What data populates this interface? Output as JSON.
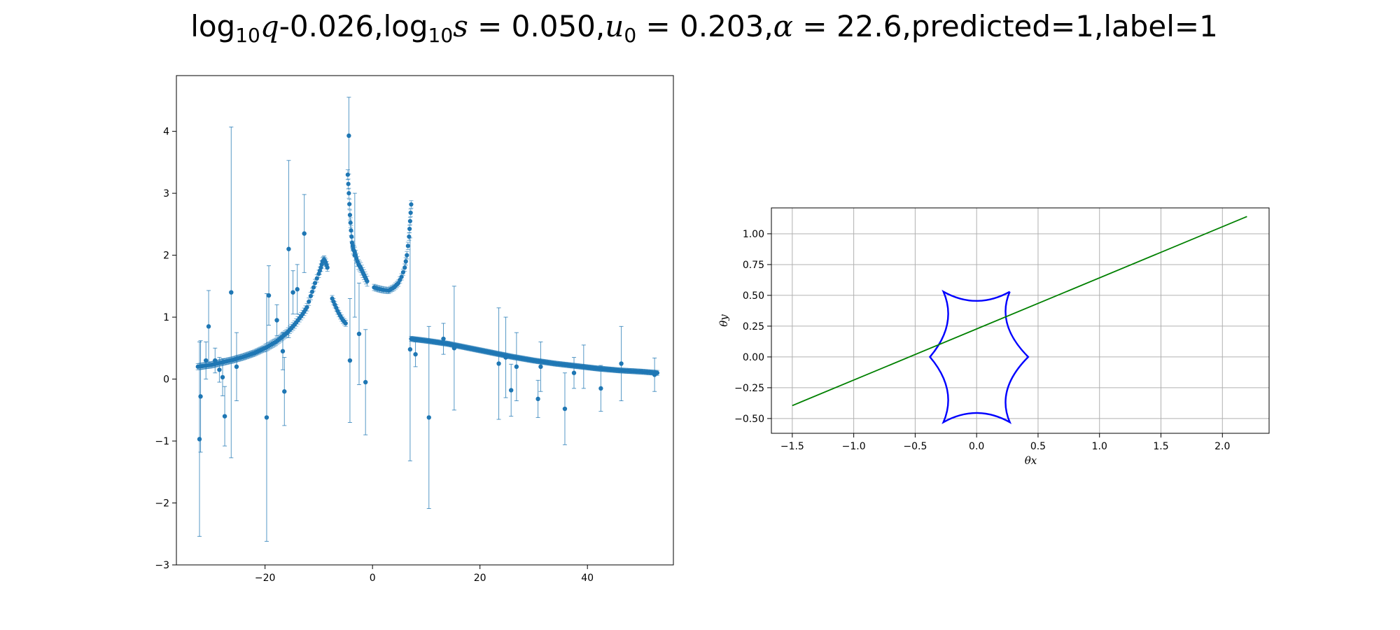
{
  "title": {
    "q_value": "-0.026",
    "s_value": "0.050",
    "u0_value": "0.203",
    "alpha_value": "22.6",
    "predicted_text": ",predicted=1",
    "label_text": ",label=1"
  },
  "chart_data": [
    {
      "type": "scatter",
      "error_bars": true,
      "marker_color": "#1f77b4",
      "title": "",
      "xlabel": "",
      "ylabel": "",
      "xlim": [
        -36.5,
        56
      ],
      "ylim": [
        -3,
        4.9
      ],
      "xticks": [
        -20,
        0,
        20,
        40
      ],
      "xtick_labels": [
        "−20",
        "0",
        "20",
        "40"
      ],
      "yticks": [
        -3,
        -2,
        -1,
        0,
        1,
        2,
        3,
        4
      ],
      "ytick_labels": [
        "−3",
        "−2",
        "−1",
        "0",
        "1",
        "2",
        "3",
        "4"
      ],
      "errorbar_points": [
        {
          "x": -32.2,
          "y": -0.97,
          "err": 1.57
        },
        {
          "x": -32.0,
          "y": -0.28,
          "err": 0.9
        },
        {
          "x": -31.0,
          "y": 0.3,
          "err": 0.3
        },
        {
          "x": -30.5,
          "y": 0.85,
          "err": 0.58
        },
        {
          "x": -29.3,
          "y": 0.3,
          "err": 0.2
        },
        {
          "x": -28.5,
          "y": 0.15,
          "err": 0.2
        },
        {
          "x": -27.9,
          "y": 0.03,
          "err": 0.3
        },
        {
          "x": -27.5,
          "y": -0.6,
          "err": 0.48
        },
        {
          "x": -26.3,
          "y": 1.4,
          "err": 2.67
        },
        {
          "x": -25.3,
          "y": 0.2,
          "err": 0.55
        },
        {
          "x": -19.7,
          "y": -0.62,
          "err": 2.0
        },
        {
          "x": -19.3,
          "y": 1.35,
          "err": 0.48
        },
        {
          "x": -17.8,
          "y": 0.95,
          "err": 0.25
        },
        {
          "x": -16.7,
          "y": 0.45,
          "err": 0.3
        },
        {
          "x": -16.4,
          "y": -0.2,
          "err": 0.55
        },
        {
          "x": -15.6,
          "y": 2.1,
          "err": 1.43
        },
        {
          "x": -14.8,
          "y": 1.4,
          "err": 0.35
        },
        {
          "x": -14.0,
          "y": 1.45,
          "err": 0.4
        },
        {
          "x": -12.7,
          "y": 2.35,
          "err": 0.63
        },
        {
          "x": -4.4,
          "y": 3.93,
          "err": 0.62
        },
        {
          "x": -4.2,
          "y": 0.3,
          "err": 1.0
        },
        {
          "x": -3.3,
          "y": 2.0,
          "err": 1.0
        },
        {
          "x": -2.5,
          "y": 0.73,
          "err": 0.82
        },
        {
          "x": -1.3,
          "y": -0.05,
          "err": 0.85
        },
        {
          "x": 7.0,
          "y": 0.48,
          "err": 1.8
        },
        {
          "x": 8.0,
          "y": 0.4,
          "err": 0.2
        },
        {
          "x": 10.5,
          "y": -0.62,
          "err": 1.47
        },
        {
          "x": 13.2,
          "y": 0.65,
          "err": 0.25
        },
        {
          "x": 15.2,
          "y": 0.5,
          "err": 1.0
        },
        {
          "x": 23.5,
          "y": 0.25,
          "err": 0.9
        },
        {
          "x": 24.8,
          "y": 0.35,
          "err": 0.65
        },
        {
          "x": 25.8,
          "y": -0.18,
          "err": 0.42
        },
        {
          "x": 26.8,
          "y": 0.2,
          "err": 0.55
        },
        {
          "x": 30.8,
          "y": -0.32,
          "err": 0.3
        },
        {
          "x": 31.3,
          "y": 0.2,
          "err": 0.4
        },
        {
          "x": 35.8,
          "y": -0.48,
          "err": 0.58
        },
        {
          "x": 37.5,
          "y": 0.1,
          "err": 0.25
        },
        {
          "x": 39.3,
          "y": 0.2,
          "err": 0.35
        },
        {
          "x": 42.5,
          "y": -0.15,
          "err": 0.37
        },
        {
          "x": 46.3,
          "y": 0.25,
          "err": 0.6
        },
        {
          "x": 52.5,
          "y": 0.07,
          "err": 0.27
        }
      ],
      "trend_segments": [
        {
          "x": [
            -32.5,
            -30,
            -28,
            -26,
            -24,
            -22,
            -20,
            -18,
            -16,
            -14.5,
            -13,
            -12.2,
            -11.5,
            -10.7,
            -10,
            -9.6,
            -9.3,
            -9.0,
            -8.7,
            -8.4
          ],
          "y": [
            0.2,
            0.23,
            0.27,
            0.31,
            0.36,
            0.42,
            0.5,
            0.6,
            0.74,
            0.88,
            1.05,
            1.16,
            1.34,
            1.55,
            1.7,
            1.8,
            1.9,
            1.93,
            1.88,
            1.8
          ],
          "errs": [
            0.05,
            0.05,
            0.05,
            0.05,
            0.05,
            0.05,
            0.06,
            0.06,
            0.06,
            0.06,
            0.06,
            0.06,
            0.06,
            0.06,
            0.06,
            0.06,
            0.06,
            0.06,
            0.06,
            0.06
          ]
        },
        {
          "x": [
            -7.5,
            -7.0,
            -6.5,
            -6.0,
            -5.5,
            -5.0
          ],
          "y": [
            1.3,
            1.2,
            1.1,
            1.02,
            0.95,
            0.9
          ],
          "errs": [
            0.05,
            0.05,
            0.05,
            0.05,
            0.05,
            0.05
          ]
        },
        {
          "x": [
            -4.6,
            -4.4,
            -4.2,
            -4.0,
            -3.8,
            -3.6,
            -3.3,
            -3.0,
            -2.6,
            -2.2,
            -1.8,
            -1.4,
            -1.0
          ],
          "y": [
            3.3,
            3.0,
            2.65,
            2.4,
            2.2,
            2.1,
            2.05,
            1.95,
            1.85,
            1.8,
            1.72,
            1.65,
            1.58
          ],
          "errs": [
            0.08,
            0.08,
            0.08,
            0.08,
            0.08,
            0.08,
            0.08,
            0.08,
            0.08,
            0.08,
            0.08,
            0.08,
            0.08
          ]
        },
        {
          "x": [
            0.3,
            1,
            2,
            3,
            4,
            4.8,
            5.4,
            6.0,
            6.4,
            6.8,
            7.0,
            7.2
          ],
          "y": [
            1.48,
            1.46,
            1.44,
            1.43,
            1.48,
            1.55,
            1.65,
            1.8,
            2.0,
            2.3,
            2.55,
            2.82
          ],
          "errs": [
            0.05,
            0.05,
            0.05,
            0.05,
            0.05,
            0.05,
            0.05,
            0.06,
            0.06,
            0.06,
            0.06,
            0.06
          ]
        },
        {
          "x": [
            7.2,
            10,
            14,
            18,
            22,
            26,
            30,
            34,
            38,
            42,
            46,
            50,
            53
          ],
          "y": [
            0.65,
            0.62,
            0.57,
            0.5,
            0.43,
            0.36,
            0.3,
            0.25,
            0.21,
            0.17,
            0.14,
            0.12,
            0.1
          ],
          "errs": [
            0.04,
            0.04,
            0.04,
            0.04,
            0.04,
            0.04,
            0.04,
            0.04,
            0.04,
            0.04,
            0.04,
            0.04,
            0.04
          ]
        }
      ]
    },
    {
      "type": "line",
      "title": "",
      "xlabel": "θx",
      "ylabel": "θy",
      "xlim": [
        -1.67,
        2.38
      ],
      "ylim": [
        -0.62,
        1.21
      ],
      "grid": true,
      "xticks": [
        -1.5,
        -1.0,
        -0.5,
        0.0,
        0.5,
        1.0,
        1.5,
        2.0
      ],
      "xtick_labels": [
        "−1.5",
        "−1.0",
        "−0.5",
        "0.0",
        "0.5",
        "1.0",
        "1.5",
        "2.0"
      ],
      "yticks": [
        -0.5,
        -0.25,
        0.0,
        0.25,
        0.5,
        0.75,
        1.0
      ],
      "ytick_labels": [
        "−0.50",
        "−0.25",
        "0.00",
        "0.25",
        "0.50",
        "0.75",
        "1.00"
      ],
      "trajectory": {
        "x": [
          -1.5,
          2.2
        ],
        "y": [
          -0.395,
          1.14
        ],
        "color": "#008000"
      },
      "caustic": {
        "color": "#0000ff",
        "cusps": [
          [
            0.27,
            0.53
          ],
          [
            -0.27,
            0.53
          ],
          [
            -0.38,
            0.0
          ],
          [
            -0.27,
            -0.53
          ],
          [
            0.27,
            -0.53
          ],
          [
            0.42,
            0.0
          ]
        ],
        "mids": [
          [
            0.0,
            0.455
          ],
          [
            -0.24,
            0.265
          ],
          [
            -0.24,
            -0.265
          ],
          [
            0.0,
            -0.455
          ],
          [
            0.25,
            -0.265
          ],
          [
            0.25,
            0.265
          ]
        ]
      }
    }
  ]
}
